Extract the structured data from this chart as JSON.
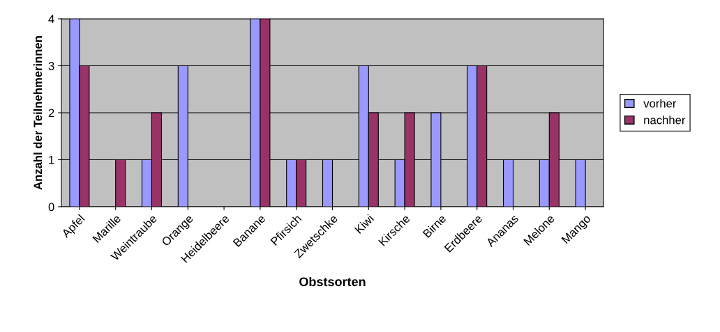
{
  "chart_data": {
    "type": "bar",
    "xlabel": "Obstsorten",
    "ylabel": "Anzahl der Teilnehmerinnen",
    "categories": [
      "Apfel",
      "Marille",
      "Weintraube",
      "Orange",
      "Heidelbeere",
      "Banane",
      "Pfirsich",
      "Zwetschke",
      "Kiwi",
      "Kirsche",
      "Birne",
      "Erdbeere",
      "Ananas",
      "Melone",
      "Mango"
    ],
    "series": [
      {
        "name": "vorher",
        "color": "#9999ff",
        "values": [
          4,
          0,
          1,
          3,
          0,
          4,
          1,
          1,
          3,
          1,
          2,
          3,
          1,
          1,
          1
        ]
      },
      {
        "name": "nachher",
        "color": "#993366",
        "values": [
          3,
          1,
          2,
          0,
          0,
          4,
          1,
          0,
          2,
          2,
          0,
          3,
          0,
          2,
          0
        ]
      }
    ],
    "ylim": [
      0,
      4
    ],
    "yticks": [
      0,
      1,
      2,
      3,
      4
    ],
    "grid": "y",
    "legend": "right"
  }
}
